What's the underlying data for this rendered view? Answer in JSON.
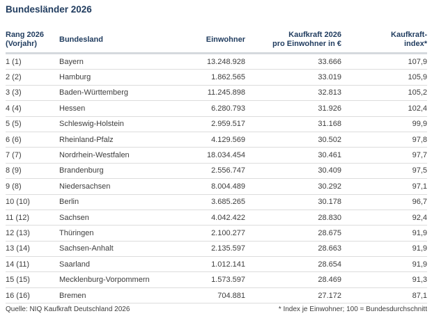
{
  "title": "Bundesländer 2026",
  "colors": {
    "heading": "#1f3b5e",
    "body_text": "#3d3d3d",
    "row_divider": "#dcdcdc",
    "header_divider": "#d5d9dd",
    "background": "#ffffff"
  },
  "chart_data": {
    "type": "table",
    "title": "Bundesländer 2026",
    "columns": {
      "rank": {
        "line1": "Rang 2026",
        "line2": "(Vorjahr)"
      },
      "land": {
        "label": "Bundesland"
      },
      "einwohner": {
        "label": "Einwohner"
      },
      "kaufkraft": {
        "line1": "Kaufkraft 2026",
        "line2": "pro Einwohner in €"
      },
      "index": {
        "line1": "Kaufkraft-",
        "line2": "index*"
      }
    },
    "rows": [
      {
        "rank": "1 (1)",
        "land": "Bayern",
        "einwohner": "13.248.928",
        "kaufkraft": "33.666",
        "index": "107,9"
      },
      {
        "rank": "2 (2)",
        "land": "Hamburg",
        "einwohner": "1.862.565",
        "kaufkraft": "33.019",
        "index": "105,9"
      },
      {
        "rank": "3 (3)",
        "land": "Baden-Württemberg",
        "einwohner": "11.245.898",
        "kaufkraft": "32.813",
        "index": "105,2"
      },
      {
        "rank": "4 (4)",
        "land": "Hessen",
        "einwohner": "6.280.793",
        "kaufkraft": "31.926",
        "index": "102,4"
      },
      {
        "rank": "5 (5)",
        "land": "Schleswig-Holstein",
        "einwohner": "2.959.517",
        "kaufkraft": "31.168",
        "index": "99,9"
      },
      {
        "rank": "6 (6)",
        "land": "Rheinland-Pfalz",
        "einwohner": "4.129.569",
        "kaufkraft": "30.502",
        "index": "97,8"
      },
      {
        "rank": "7 (7)",
        "land": "Nordrhein-Westfalen",
        "einwohner": "18.034.454",
        "kaufkraft": "30.461",
        "index": "97,7"
      },
      {
        "rank": "8 (9)",
        "land": "Brandenburg",
        "einwohner": "2.556.747",
        "kaufkraft": "30.409",
        "index": "97,5"
      },
      {
        "rank": "9 (8)",
        "land": "Niedersachsen",
        "einwohner": "8.004.489",
        "kaufkraft": "30.292",
        "index": "97,1"
      },
      {
        "rank": "10 (10)",
        "land": "Berlin",
        "einwohner": "3.685.265",
        "kaufkraft": "30.178",
        "index": "96,7"
      },
      {
        "rank": "11 (12)",
        "land": "Sachsen",
        "einwohner": "4.042.422",
        "kaufkraft": "28.830",
        "index": "92,4"
      },
      {
        "rank": "12 (13)",
        "land": "Thüringen",
        "einwohner": "2.100.277",
        "kaufkraft": "28.675",
        "index": "91,9"
      },
      {
        "rank": "13 (14)",
        "land": "Sachsen-Anhalt",
        "einwohner": "2.135.597",
        "kaufkraft": "28.663",
        "index": "91,9"
      },
      {
        "rank": "14 (11)",
        "land": "Saarland",
        "einwohner": "1.012.141",
        "kaufkraft": "28.654",
        "index": "91,9"
      },
      {
        "rank": "15 (15)",
        "land": "Mecklenburg-Vorpommern",
        "einwohner": "1.573.597",
        "kaufkraft": "28.469",
        "index": "91,3"
      },
      {
        "rank": "16 (16)",
        "land": "Bremen",
        "einwohner": "704.881",
        "kaufkraft": "27.172",
        "index": "87,1"
      }
    ]
  },
  "footer": {
    "source": "Quelle: NIQ Kaufkraft Deutschland 2026",
    "note": "* Index je Einwohner; 100 = Bundesdurchschnitt"
  }
}
